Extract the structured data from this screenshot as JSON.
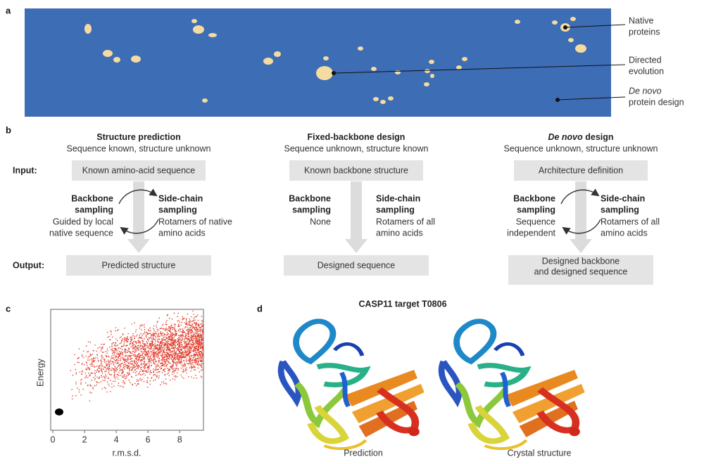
{
  "panel_labels": [
    "a",
    "b",
    "c",
    "d"
  ],
  "panel_a": {
    "labels": [
      {
        "lines": [
          "Native",
          "proteins"
        ]
      },
      {
        "lines": [
          "Directed",
          "evolution"
        ]
      },
      {
        "lines": [
          "De novo",
          "protein design"
        ]
      }
    ]
  },
  "panel_b": {
    "row_labels": [
      "Input:",
      "Output:"
    ],
    "columns": [
      {
        "title": [
          {
            "text": "Structure prediction"
          }
        ],
        "subtitle": "Sequence known, structure unknown",
        "input": [
          "Known amino-acid sequence"
        ],
        "backbone_title": [
          "Backbone",
          "sampling"
        ],
        "backbone_text": [
          "Guided by local",
          "native sequence"
        ],
        "sidechain_title": [
          "Side-chain",
          "sampling"
        ],
        "sidechain_text": [
          "Rotamers of native",
          "amino acids"
        ],
        "output": [
          "Predicted structure"
        ],
        "cycle": true
      },
      {
        "title": [
          {
            "text": "Fixed-backbone design"
          }
        ],
        "subtitle": "Sequence unknown, structure known",
        "input": [
          "Known backbone structure"
        ],
        "backbone_title": [
          "Backbone",
          "sampling"
        ],
        "backbone_text": [
          "None"
        ],
        "sidechain_title": [
          "Side-chain",
          "sampling"
        ],
        "sidechain_text": [
          "Rotamers of all",
          "amino acids"
        ],
        "output": [
          "Designed sequence"
        ],
        "cycle": false
      },
      {
        "title": [
          {
            "text": "De novo",
            "italic": true
          },
          {
            "text": " design"
          }
        ],
        "subtitle": "Sequence unknown, structure unknown",
        "input": [
          "Architecture definition"
        ],
        "backbone_title": [
          "Backbone",
          "sampling"
        ],
        "backbone_text": [
          "Sequence",
          "independent"
        ],
        "sidechain_title": [
          "Side-chain",
          "sampling"
        ],
        "sidechain_text": [
          "Rotamers of all",
          "amino acids"
        ],
        "output": [
          "Designed backbone",
          "and designed sequence"
        ],
        "cycle": true
      }
    ]
  },
  "panel_c": {
    "xlabel": "r.m.s.d.",
    "ylabel": "Energy",
    "xlim": [
      0,
      9.5
    ],
    "xticks": [
      0,
      2,
      4,
      6,
      8
    ]
  },
  "panel_d": {
    "title": "CASP11 target T0806",
    "captions": [
      "Prediction",
      "Crystal structure"
    ]
  }
}
